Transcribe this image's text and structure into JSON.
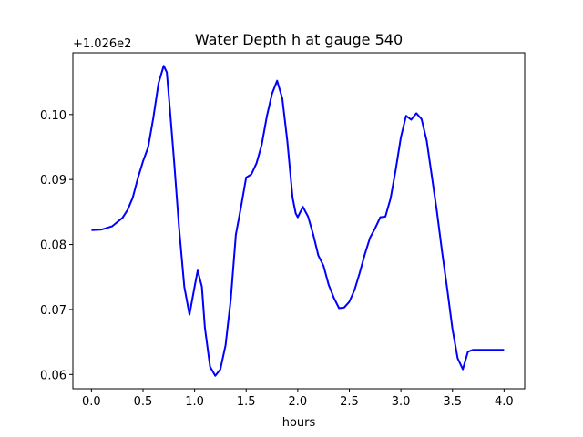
{
  "chart_data": {
    "type": "line",
    "title": "Water Depth h at gauge 540",
    "xlabel": "hours",
    "ylabel": "",
    "offset_label": "+1.026e2",
    "xlim": [
      -0.18,
      4.2
    ],
    "ylim": [
      0.0578,
      0.1095
    ],
    "xticks": [
      "0.0",
      "0.5",
      "1.0",
      "1.5",
      "2.0",
      "2.5",
      "3.0",
      "3.5",
      "4.0"
    ],
    "xtick_values": [
      0.0,
      0.5,
      1.0,
      1.5,
      2.0,
      2.5,
      3.0,
      3.5,
      4.0
    ],
    "yticks": [
      "0.06",
      "0.07",
      "0.08",
      "0.09",
      "0.10"
    ],
    "ytick_values": [
      0.06,
      0.07,
      0.08,
      0.09,
      0.1
    ],
    "grid": false,
    "series": [
      {
        "color": "#0000ff",
        "x": [
          0.0,
          0.1,
          0.2,
          0.3,
          0.35,
          0.4,
          0.45,
          0.5,
          0.55,
          0.6,
          0.65,
          0.7,
          0.73,
          0.76,
          0.8,
          0.85,
          0.9,
          0.95,
          1.0,
          1.03,
          1.07,
          1.1,
          1.15,
          1.2,
          1.25,
          1.3,
          1.35,
          1.4,
          1.45,
          1.5,
          1.55,
          1.6,
          1.65,
          1.7,
          1.75,
          1.8,
          1.85,
          1.9,
          1.95,
          1.98,
          2.0,
          2.05,
          2.1,
          2.15,
          2.2,
          2.25,
          2.3,
          2.35,
          2.4,
          2.45,
          2.5,
          2.55,
          2.6,
          2.65,
          2.7,
          2.75,
          2.8,
          2.85,
          2.9,
          2.95,
          3.0,
          3.05,
          3.1,
          3.15,
          3.2,
          3.25,
          3.3,
          3.35,
          3.4,
          3.45,
          3.5,
          3.55,
          3.6,
          3.65,
          3.7,
          3.75,
          3.8,
          3.85,
          3.9,
          3.95,
          4.0
        ],
        "y": [
          0.0822,
          0.0823,
          0.0828,
          0.0841,
          0.0853,
          0.0872,
          0.0902,
          0.0928,
          0.095,
          0.0995,
          0.1048,
          0.1075,
          0.1065,
          0.101,
          0.093,
          0.0825,
          0.0735,
          0.0692,
          0.0735,
          0.076,
          0.0735,
          0.0672,
          0.0612,
          0.0598,
          0.0608,
          0.0645,
          0.0715,
          0.0815,
          0.0858,
          0.0903,
          0.0908,
          0.0925,
          0.0953,
          0.0997,
          0.1032,
          0.1052,
          0.1025,
          0.0958,
          0.0872,
          0.0848,
          0.0842,
          0.0858,
          0.0843,
          0.0815,
          0.0783,
          0.0767,
          0.0738,
          0.0718,
          0.0702,
          0.0703,
          0.0712,
          0.073,
          0.0756,
          0.0785,
          0.081,
          0.0825,
          0.0842,
          0.0843,
          0.0871,
          0.0915,
          0.0965,
          0.0998,
          0.0992,
          0.1002,
          0.0993,
          0.096,
          0.0905,
          0.085,
          0.0788,
          0.073,
          0.067,
          0.0625,
          0.0608,
          0.0635,
          0.0638,
          0.0638,
          0.0638,
          0.0638,
          0.0638,
          0.0638,
          0.0638
        ]
      }
    ]
  }
}
